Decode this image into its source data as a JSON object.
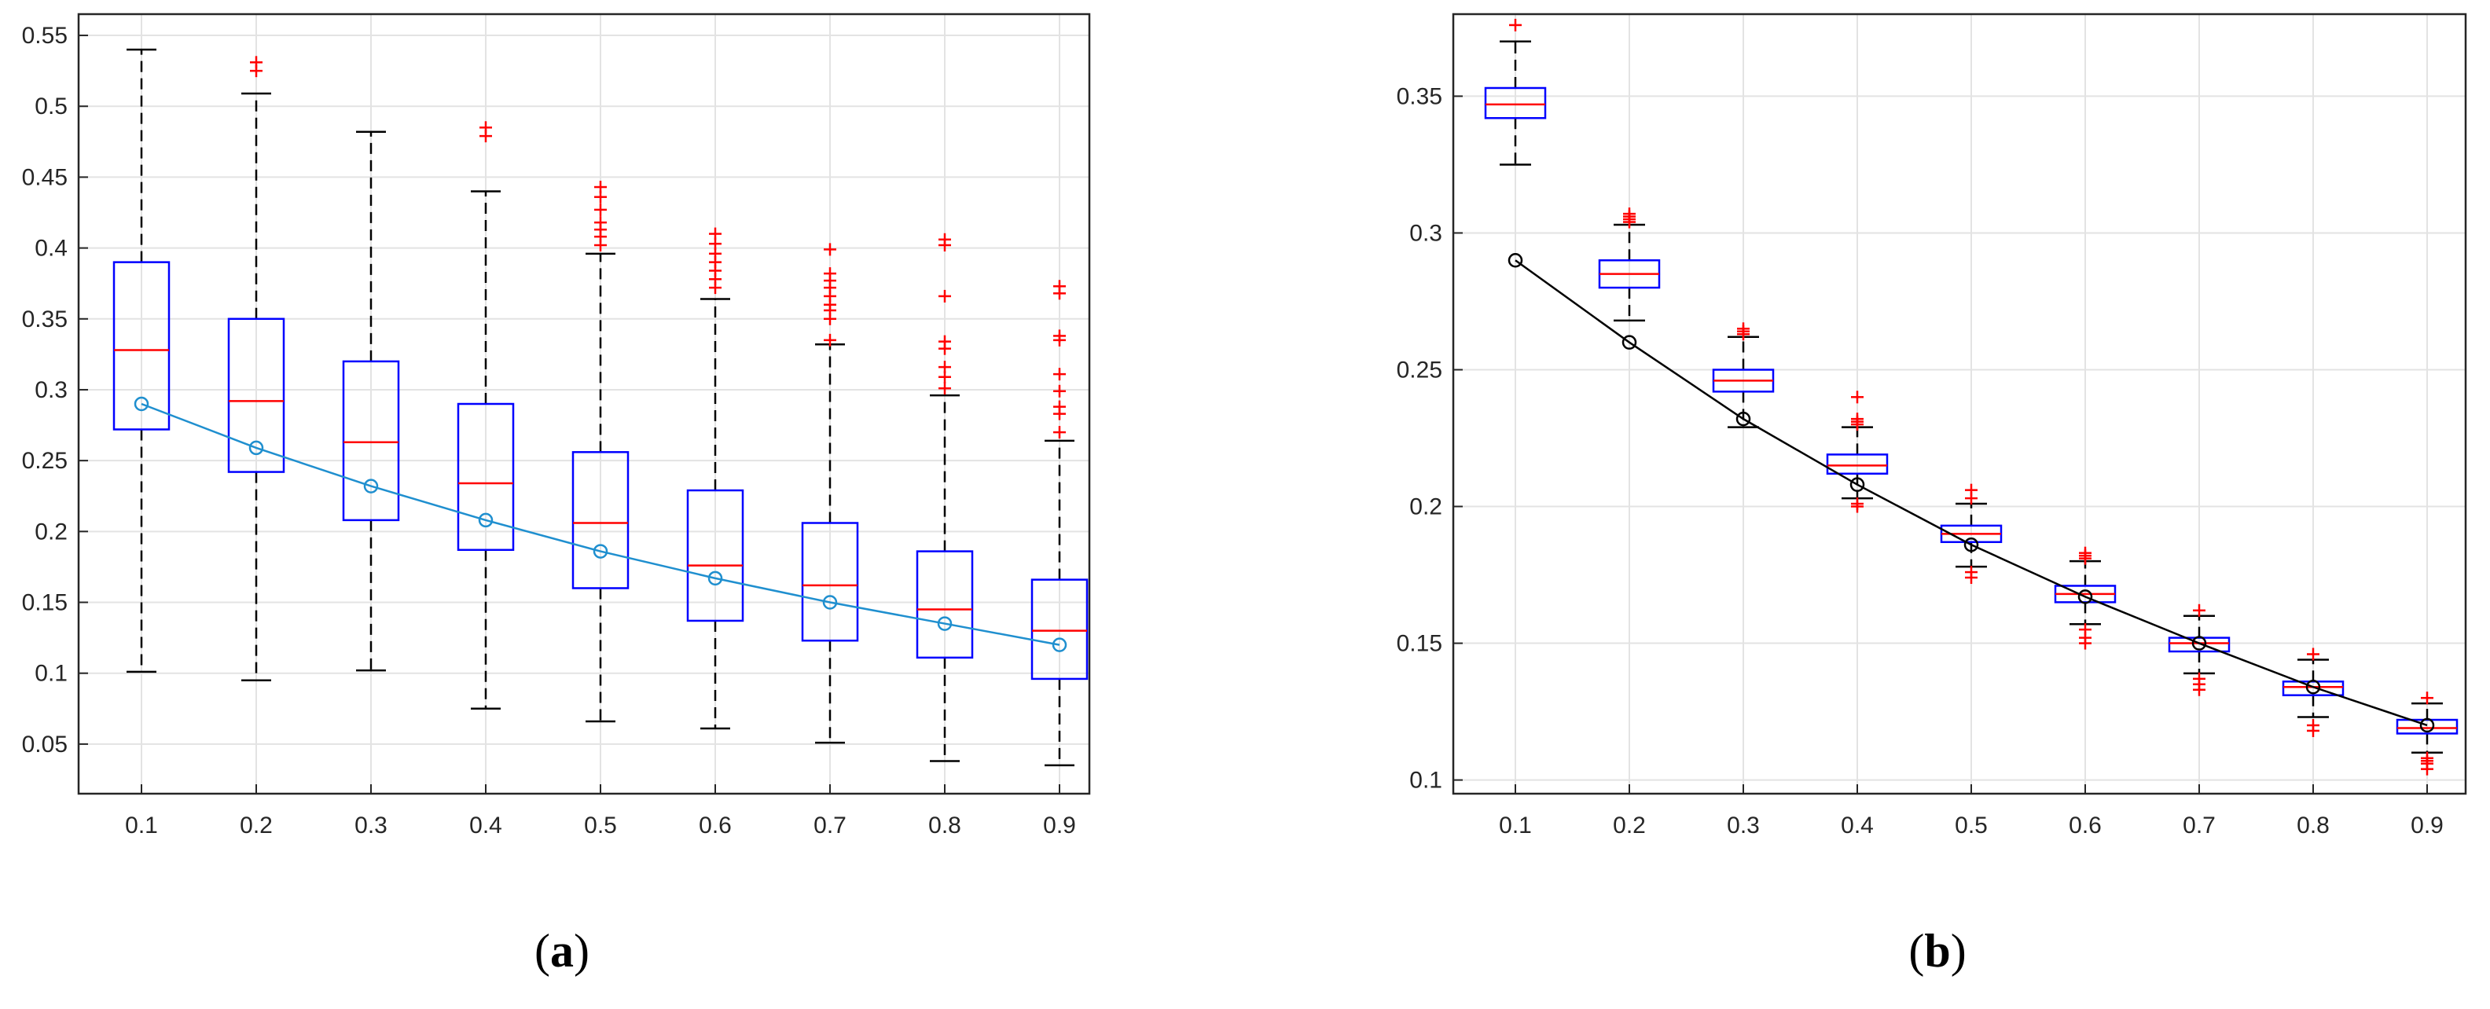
{
  "chart_data": [
    {
      "type": "boxplot",
      "label_parts": [
        "(",
        "a",
        ")"
      ],
      "categories": [
        "0.1",
        "0.2",
        "0.3",
        "0.4",
        "0.5",
        "0.6",
        "0.7",
        "0.8",
        "0.9"
      ],
      "yticks": [
        "0.05",
        "0.1",
        "0.15",
        "0.2",
        "0.25",
        "0.3",
        "0.35",
        "0.4",
        "0.45",
        "0.5",
        "0.55"
      ],
      "ylim": [
        0.015,
        0.565
      ],
      "grid": true,
      "colors": {
        "box": "#0000ff",
        "median": "#ff0000",
        "whisker": "#000000",
        "outlier": "#ff0000",
        "trend": "#1f8fcf"
      },
      "boxes": [
        {
          "q1": 0.272,
          "median": 0.328,
          "q3": 0.39,
          "low": 0.101,
          "high": 0.54,
          "outliers": []
        },
        {
          "q1": 0.242,
          "median": 0.292,
          "q3": 0.35,
          "low": 0.095,
          "high": 0.509,
          "outliers": [
            0.525,
            0.531
          ]
        },
        {
          "q1": 0.208,
          "median": 0.263,
          "q3": 0.32,
          "low": 0.102,
          "high": 0.482,
          "outliers": []
        },
        {
          "q1": 0.187,
          "median": 0.234,
          "q3": 0.29,
          "low": 0.075,
          "high": 0.44,
          "outliers": [
            0.479,
            0.485
          ]
        },
        {
          "q1": 0.16,
          "median": 0.206,
          "q3": 0.256,
          "low": 0.066,
          "high": 0.396,
          "outliers": [
            0.402,
            0.408,
            0.413,
            0.418,
            0.427,
            0.436,
            0.443
          ]
        },
        {
          "q1": 0.137,
          "median": 0.176,
          "q3": 0.229,
          "low": 0.061,
          "high": 0.364,
          "outliers": [
            0.372,
            0.378,
            0.384,
            0.39,
            0.396,
            0.403,
            0.41
          ]
        },
        {
          "q1": 0.123,
          "median": 0.162,
          "q3": 0.206,
          "low": 0.051,
          "high": 0.332,
          "outliers": [
            0.335,
            0.35,
            0.356,
            0.36,
            0.366,
            0.372,
            0.377,
            0.382,
            0.399
          ]
        },
        {
          "q1": 0.111,
          "median": 0.145,
          "q3": 0.186,
          "low": 0.038,
          "high": 0.296,
          "outliers": [
            0.301,
            0.309,
            0.316,
            0.329,
            0.334,
            0.366,
            0.402,
            0.406
          ]
        },
        {
          "q1": 0.096,
          "median": 0.13,
          "q3": 0.166,
          "low": 0.035,
          "high": 0.264,
          "outliers": [
            0.27,
            0.283,
            0.288,
            0.299,
            0.311,
            0.335,
            0.338,
            0.368,
            0.373
          ]
        }
      ],
      "trend": [
        0.29,
        0.259,
        0.232,
        0.208,
        0.186,
        0.167,
        0.15,
        0.135,
        0.12
      ]
    },
    {
      "type": "boxplot",
      "label_parts": [
        "(",
        "b",
        ")"
      ],
      "categories": [
        "0.1",
        "0.2",
        "0.3",
        "0.4",
        "0.5",
        "0.6",
        "0.7",
        "0.8",
        "0.9"
      ],
      "yticks": [
        "0.1",
        "0.15",
        "0.2",
        "0.25",
        "0.3",
        "0.35"
      ],
      "ylim": [
        0.095,
        0.38
      ],
      "grid": true,
      "colors": {
        "box": "#0000ff",
        "median": "#ff0000",
        "whisker": "#000000",
        "outlier": "#ff0000",
        "trend": "#000000"
      },
      "boxes": [
        {
          "q1": 0.342,
          "median": 0.347,
          "q3": 0.353,
          "low": 0.325,
          "high": 0.37,
          "outliers": [
            0.376
          ]
        },
        {
          "q1": 0.28,
          "median": 0.285,
          "q3": 0.29,
          "low": 0.268,
          "high": 0.303,
          "outliers": [
            0.304,
            0.305,
            0.306,
            0.307
          ]
        },
        {
          "q1": 0.242,
          "median": 0.246,
          "q3": 0.25,
          "low": 0.229,
          "high": 0.262,
          "outliers": [
            0.263,
            0.264,
            0.265
          ]
        },
        {
          "q1": 0.212,
          "median": 0.215,
          "q3": 0.219,
          "low": 0.203,
          "high": 0.229,
          "outliers": [
            0.2,
            0.201,
            0.23,
            0.231,
            0.232,
            0.24
          ]
        },
        {
          "q1": 0.187,
          "median": 0.19,
          "q3": 0.193,
          "low": 0.178,
          "high": 0.201,
          "outliers": [
            0.174,
            0.176,
            0.203,
            0.206
          ]
        },
        {
          "q1": 0.165,
          "median": 0.168,
          "q3": 0.171,
          "low": 0.157,
          "high": 0.18,
          "outliers": [
            0.15,
            0.152,
            0.155,
            0.181,
            0.182,
            0.183
          ]
        },
        {
          "q1": 0.147,
          "median": 0.15,
          "q3": 0.152,
          "low": 0.139,
          "high": 0.16,
          "outliers": [
            0.133,
            0.135,
            0.137,
            0.162
          ]
        },
        {
          "q1": 0.131,
          "median": 0.134,
          "q3": 0.136,
          "low": 0.123,
          "high": 0.144,
          "outliers": [
            0.118,
            0.12,
            0.146
          ]
        },
        {
          "q1": 0.117,
          "median": 0.119,
          "q3": 0.122,
          "low": 0.11,
          "high": 0.128,
          "outliers": [
            0.104,
            0.106,
            0.107,
            0.108,
            0.13
          ]
        }
      ],
      "trend": [
        0.29,
        0.26,
        0.232,
        0.208,
        0.186,
        0.167,
        0.15,
        0.134,
        0.12
      ]
    }
  ]
}
